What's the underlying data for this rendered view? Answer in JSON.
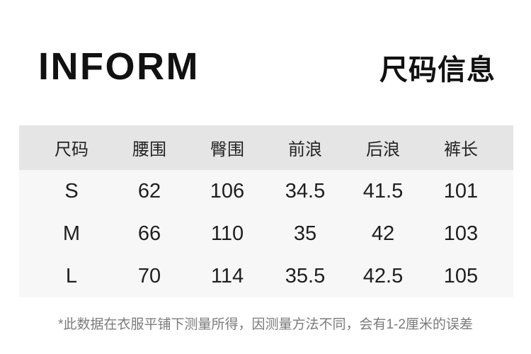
{
  "brand": {
    "logo_text": "INFORM"
  },
  "header": {
    "title": "尺码信息"
  },
  "size_table": {
    "columns": [
      "尺码",
      "腰围",
      "臀围",
      "前浪",
      "后浪",
      "裤长"
    ],
    "rows": [
      [
        "S",
        "62",
        "106",
        "34.5",
        "41.5",
        "101"
      ],
      [
        "M",
        "66",
        "110",
        "35",
        "42",
        "103"
      ],
      [
        "L",
        "70",
        "114",
        "35.5",
        "42.5",
        "105"
      ]
    ]
  },
  "footnote": "*此数据在衣服平铺下测量所得，因测量方法不同，会有1-2厘米的误差",
  "colors": {
    "page_bg": "#ffffff",
    "header_row_bg": "#e5e5e5",
    "data_rows_bg": "#f7f7f7",
    "brand_text": "#111111",
    "table_text": "#1f1f1f",
    "footnote_text": "#7b7b7b"
  },
  "chart_data": {
    "type": "table",
    "title": "尺码信息",
    "columns": [
      "尺码",
      "腰围",
      "臀围",
      "前浪",
      "后浪",
      "裤长"
    ],
    "rows": [
      [
        "S",
        62,
        106,
        34.5,
        41.5,
        101
      ],
      [
        "M",
        66,
        110,
        35,
        42,
        103
      ],
      [
        "L",
        70,
        114,
        35.5,
        42.5,
        105
      ]
    ],
    "note": "*此数据在衣服平铺下测量所得，因测量方法不同，会有1-2厘米的误差"
  }
}
